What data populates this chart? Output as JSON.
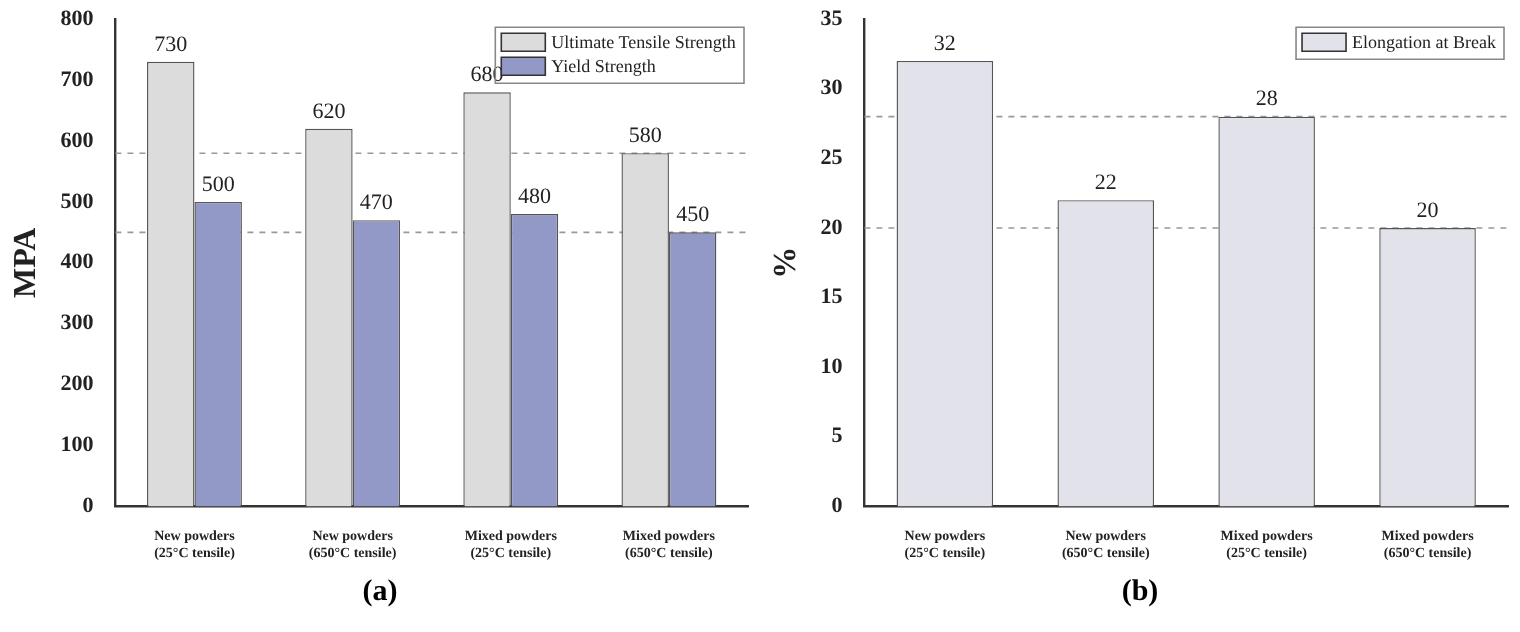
{
  "chart_data": [
    {
      "type": "bar",
      "ylabel": "MPA",
      "categories": [
        "New powders (25°C tensile)",
        "New powders (650°C tensile)",
        "Mixed powders (25°C tensile)",
        "Mixed powders (650°C tensile)"
      ],
      "series": [
        {
          "name": "Ultimate Tensile Strength",
          "color": "#dcdcdc",
          "values": [
            730,
            620,
            680,
            580
          ]
        },
        {
          "name": "Yield Strength",
          "color": "#9399c6",
          "values": [
            500,
            470,
            480,
            450
          ]
        }
      ],
      "ylim": [
        0,
        800
      ],
      "yticks": [
        0,
        100,
        200,
        300,
        400,
        500,
        600,
        700,
        800
      ],
      "data_labels": true,
      "legend": "top right",
      "grid": false,
      "ref_lines": [
        {
          "axis": "y",
          "value": 580,
          "line_style": "dashed",
          "color": "#999999"
        },
        {
          "axis": "y",
          "value": 450,
          "line_style": "dashed",
          "color": "#999999"
        }
      ],
      "annotations": [
        "(a)"
      ]
    },
    {
      "type": "bar",
      "ylabel": "%",
      "categories": [
        "New powders (25°C tensile)",
        "New powders (650°C tensile)",
        "Mixed powders (25°C tensile)",
        "Mixed powders (650°C tensile)"
      ],
      "series": [
        {
          "name": "Elongation at Break",
          "color": "#e2e2ea",
          "values": [
            32,
            22,
            28,
            20
          ]
        }
      ],
      "ylim": [
        0,
        35
      ],
      "yticks": [
        0,
        5,
        10,
        15,
        20,
        25,
        30,
        35
      ],
      "data_labels": true,
      "legend": "top right",
      "grid": false,
      "ref_lines": [
        {
          "axis": "y",
          "value": 28,
          "line_style": "dashed",
          "color": "#999999"
        },
        {
          "axis": "y",
          "value": 20,
          "line_style": "dashed",
          "color": "#999999"
        }
      ],
      "annotations": [
        "(b)"
      ]
    }
  ]
}
